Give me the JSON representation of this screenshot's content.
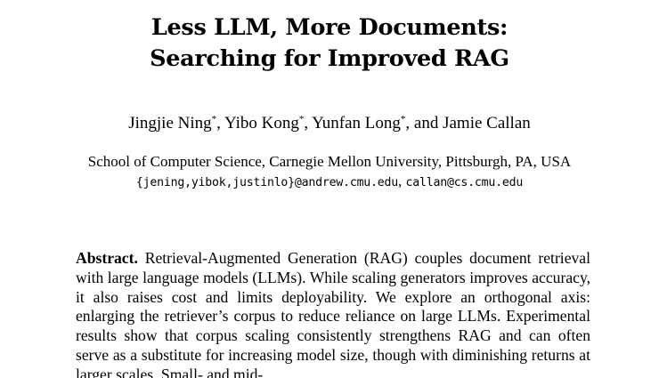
{
  "paper": {
    "title_line1": "Less LLM, More Documents:",
    "title_line2": "Searching for Improved RAG",
    "authors": [
      {
        "name": "Jingjie Ning",
        "mark": "*"
      },
      {
        "name": "Yibo Kong",
        "mark": "*"
      },
      {
        "name": "Yunfan Long",
        "mark": "*"
      },
      {
        "name": "Jamie Callan",
        "mark": ""
      }
    ],
    "author_sep1": ", ",
    "author_sep2": ", ",
    "author_sep3": ", and ",
    "affiliation": "School of Computer Science, Carnegie Mellon University, Pittsburgh, PA, USA",
    "email_group": "{jening,yibok,justinlo}@andrew.cmu.edu",
    "email_sep": ", ",
    "email_single": "callan@cs.cmu.edu",
    "abstract_label": "Abstract.",
    "abstract_text": "Retrieval-Augmented Generation (RAG) couples document retrieval with large language models (LLMs). While scaling generators improves accuracy, it also raises cost and limits deployability. We explore an orthogonal axis: enlarging the retriever’s corpus to reduce reliance on large LLMs. Experimental results show that corpus scaling consistently strengthens RAG and can often serve as a substitute for increasing model size, though with diminishing returns at larger scales. Small- and mid-"
  }
}
